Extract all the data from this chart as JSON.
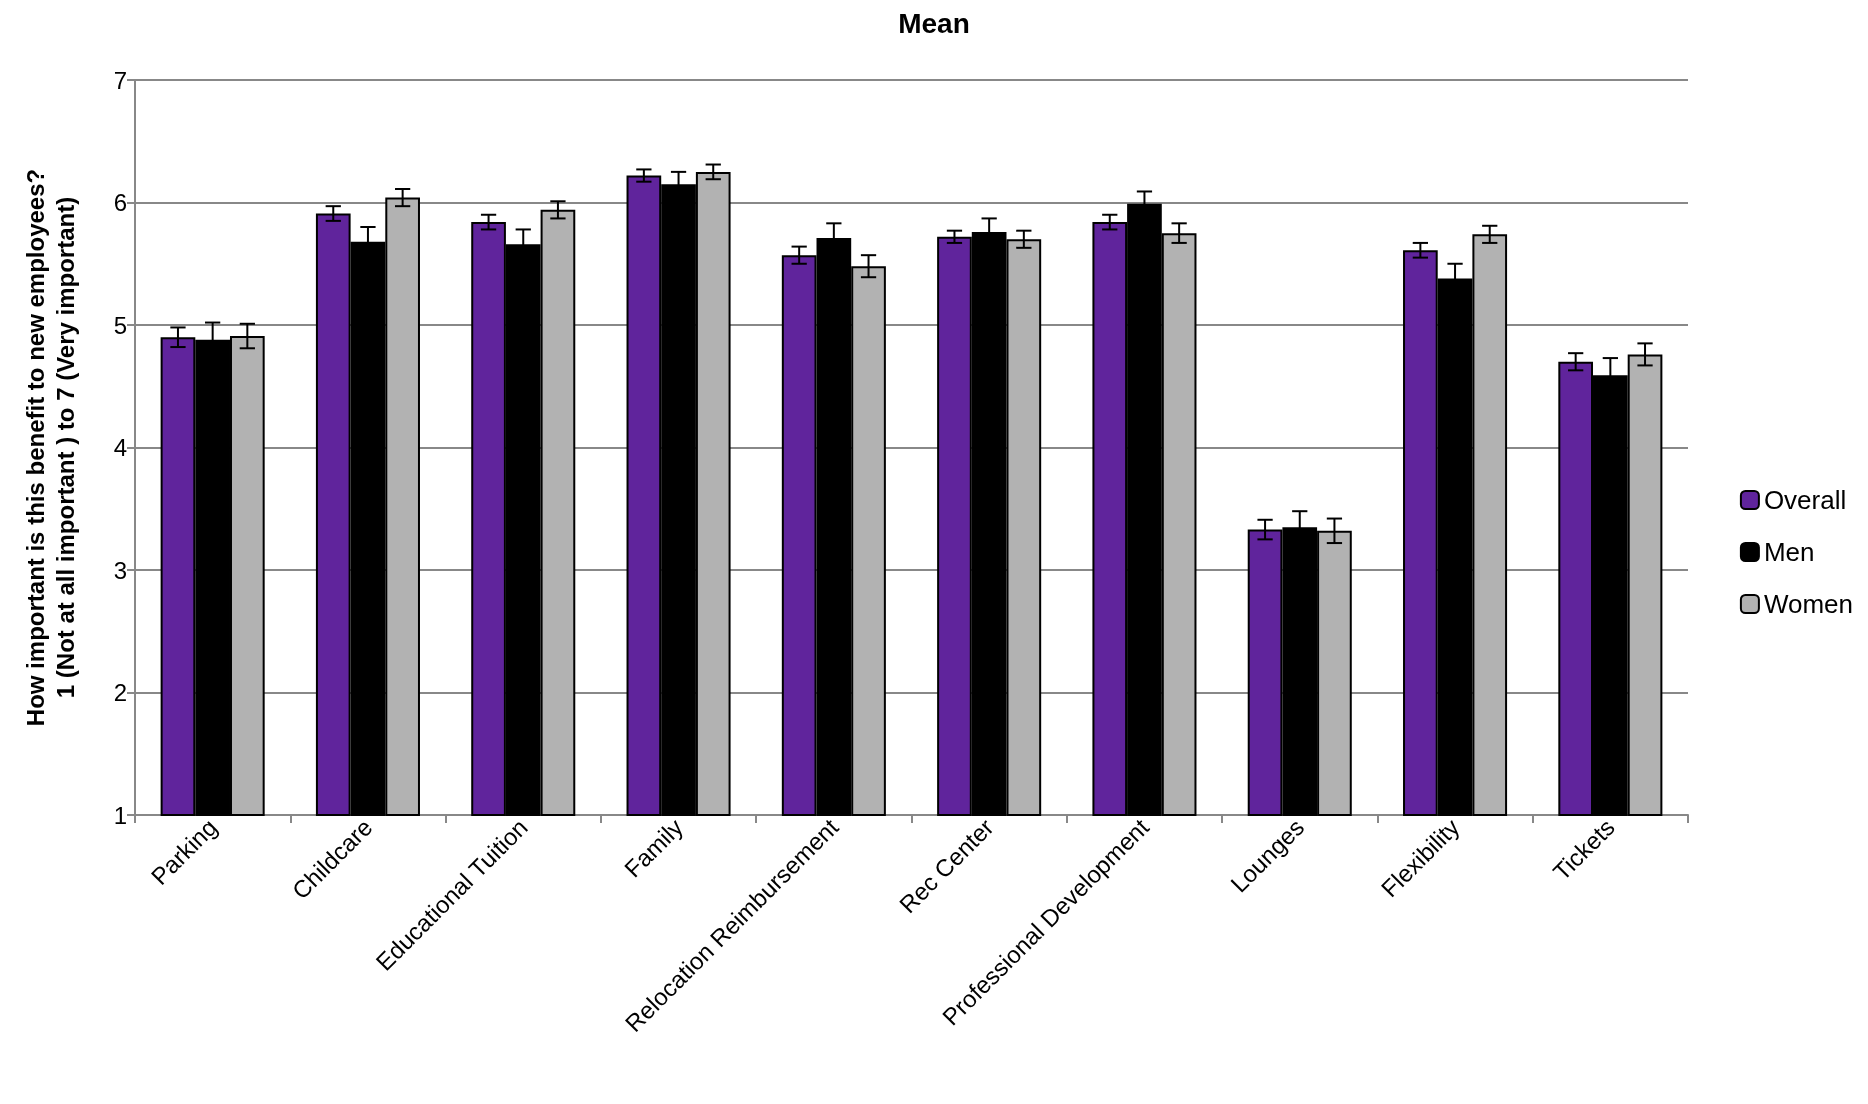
{
  "chart_data": {
    "type": "bar",
    "title": "Mean",
    "ylabel": "How important is this benefit to new employees?\n1 (Not at all important ) to 7 (Very important)",
    "categories": [
      "Parking",
      "Childcare",
      "Educational Tuition",
      "Family",
      "Relocation Reimbursement",
      "Rec Center",
      "Professional Development",
      "Lounges",
      "Flexibility",
      "Tickets"
    ],
    "series": [
      {
        "name": "Overall",
        "color": "#60249c",
        "values": [
          4.9,
          5.91,
          5.84,
          6.22,
          5.57,
          5.72,
          5.84,
          3.33,
          5.61,
          4.7
        ],
        "errors": [
          0.08,
          0.06,
          0.06,
          0.05,
          0.07,
          0.05,
          0.06,
          0.08,
          0.06,
          0.07
        ]
      },
      {
        "name": "Men",
        "color": "#000000",
        "values": [
          4.88,
          5.68,
          5.66,
          6.15,
          5.71,
          5.76,
          5.99,
          3.35,
          5.38,
          4.59
        ],
        "errors": [
          0.14,
          0.12,
          0.12,
          0.1,
          0.12,
          0.11,
          0.1,
          0.13,
          0.12,
          0.14
        ]
      },
      {
        "name": "Women",
        "color": "#b2b2b2",
        "values": [
          4.91,
          6.04,
          5.94,
          6.25,
          5.48,
          5.7,
          5.75,
          3.32,
          5.74,
          4.76
        ],
        "errors": [
          0.1,
          0.07,
          0.07,
          0.06,
          0.09,
          0.07,
          0.08,
          0.1,
          0.07,
          0.09
        ]
      }
    ],
    "ylim": [
      1,
      7
    ],
    "yticks": [
      1,
      2,
      3,
      4,
      5,
      6,
      7
    ],
    "grid": "y",
    "legend": "right"
  }
}
